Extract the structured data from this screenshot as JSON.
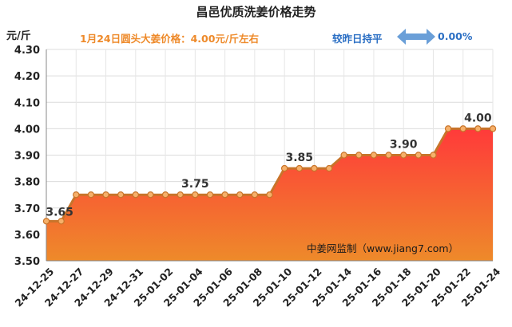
{
  "header": {
    "title": "昌邑优质洗姜价格走势",
    "unit": "元/斤",
    "price_text": "1月24日圆头大姜价格：4.00元/斤左右",
    "compare_text": "较昨日持平",
    "change_pct": "0.00%",
    "compare_icon": "double-arrow-icon",
    "watermark": "中姜网监制（www.jiang7.com）"
  },
  "colors": {
    "line": "#c8742a",
    "marker_fill": "#f6b06a",
    "area_top": "#ff3a3a",
    "area_bottom": "#ee8a2a",
    "accent_blue": "#2b6fc4",
    "accent_orange": "#ee8a2a"
  },
  "chart_data": {
    "type": "area",
    "title": "昌邑优质洗姜价格走势",
    "ylabel": "元/斤",
    "xlabel": "",
    "ylim": [
      3.5,
      4.3
    ],
    "yticks": [
      "3.50",
      "3.60",
      "3.70",
      "3.80",
      "3.90",
      "4.00",
      "4.10",
      "4.20",
      "4.30"
    ],
    "grid": true,
    "x": [
      "24-12-25",
      "24-12-26",
      "24-12-27",
      "24-12-28",
      "24-12-29",
      "24-12-30",
      "24-12-31",
      "25-01-01",
      "25-01-02",
      "25-01-03",
      "25-01-04",
      "25-01-05",
      "25-01-06",
      "25-01-07",
      "25-01-08",
      "25-01-09",
      "25-01-10",
      "25-01-11",
      "25-01-12",
      "25-01-13",
      "25-01-14",
      "25-01-15",
      "25-01-16",
      "25-01-17",
      "25-01-18",
      "25-01-19",
      "25-01-20",
      "25-01-21",
      "25-01-22",
      "25-01-23",
      "25-01-24"
    ],
    "xtick_labels": [
      "24-12-25",
      "24-12-27",
      "24-12-29",
      "24-12-31",
      "25-01-02",
      "25-01-04",
      "25-01-06",
      "25-01-08",
      "25-01-10",
      "25-01-12",
      "25-01-14",
      "25-01-16",
      "25-01-18",
      "25-01-20",
      "25-01-22",
      "25-01-24"
    ],
    "values": [
      3.65,
      3.65,
      3.75,
      3.75,
      3.75,
      3.75,
      3.75,
      3.75,
      3.75,
      3.75,
      3.75,
      3.75,
      3.75,
      3.75,
      3.75,
      3.75,
      3.85,
      3.85,
      3.85,
      3.85,
      3.9,
      3.9,
      3.9,
      3.9,
      3.9,
      3.9,
      3.9,
      4.0,
      4.0,
      4.0,
      4.0
    ],
    "data_labels": [
      {
        "index": 1,
        "text": "3.65"
      },
      {
        "index": 10,
        "text": "3.75"
      },
      {
        "index": 17,
        "text": "3.85"
      },
      {
        "index": 24,
        "text": "3.90"
      },
      {
        "index": 29,
        "text": "4.00"
      }
    ]
  }
}
